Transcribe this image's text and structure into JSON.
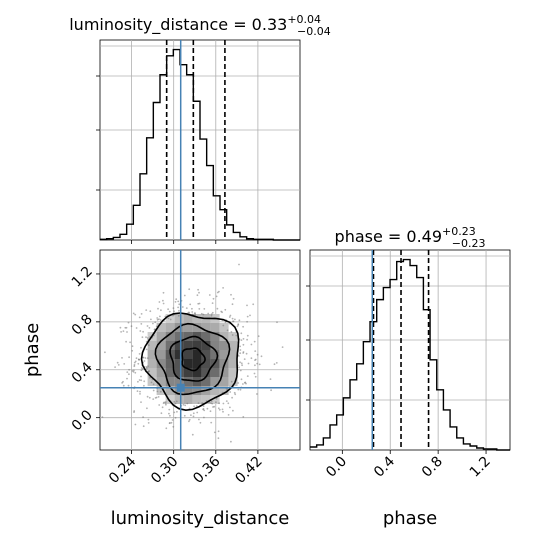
{
  "chart_data": [
    {
      "type": "histogram",
      "panel": "luminosity_distance-marginal",
      "title": {
        "main": "luminosity_distance = 0.33",
        "sup": "+0.04",
        "sub": "−0.04"
      },
      "xlim": [
        0.195,
        0.48
      ],
      "bins": {
        "start": 0.195,
        "width": 0.0095,
        "counts": [
          1,
          2,
          4,
          9,
          25,
          55,
          105,
          162,
          218,
          262,
          292,
          302,
          278,
          262,
          220,
          160,
          118,
          70,
          48,
          24,
          12,
          5,
          2,
          1,
          1,
          1,
          0,
          0,
          0,
          0
        ]
      },
      "quantile_lines": [
        0.29,
        0.328,
        0.373
      ],
      "truth": 0.31,
      "grid": true
    },
    {
      "type": "histogram",
      "panel": "phase-marginal",
      "title": {
        "main": "phase = 0.49",
        "sup": "+0.23",
        "sub": "−0.23"
      },
      "xlim": [
        -0.27,
        1.4
      ],
      "xticks": [
        "0.0",
        "0.4",
        "0.8",
        "1.2"
      ],
      "xtick_values": [
        0.0,
        0.4,
        0.8,
        1.2
      ],
      "xlabel": "phase",
      "bins": {
        "start": -0.27,
        "width": 0.0557,
        "counts": [
          3,
          5,
          12,
          25,
          35,
          52,
          70,
          86,
          108,
          128,
          150,
          162,
          170,
          188,
          190,
          184,
          172,
          140,
          90,
          60,
          40,
          23,
          12,
          6,
          4,
          2,
          1,
          1,
          0,
          0
        ]
      },
      "quantile_lines": [
        0.26,
        0.49,
        0.72
      ],
      "truth": 0.25,
      "grid": true
    },
    {
      "type": "2d-density",
      "panel": "joint",
      "xlim": [
        0.195,
        0.48
      ],
      "ylim": [
        -0.27,
        1.4
      ],
      "xticks": [
        "0.24",
        "0.30",
        "0.36",
        "0.42"
      ],
      "xtick_values": [
        0.24,
        0.3,
        0.36,
        0.42
      ],
      "yticks": [
        "0.0",
        "0.4",
        "0.8",
        "1.2"
      ],
      "ytick_values": [
        0.0,
        0.4,
        0.8,
        1.2
      ],
      "xlabel": "luminosity_distance",
      "ylabel": "phase",
      "center": [
        0.327,
        0.49
      ],
      "spread": [
        0.04,
        0.23
      ],
      "contour_levels": [
        0.4,
        0.8,
        1.25,
        1.7
      ],
      "truth": [
        0.31,
        0.25
      ],
      "grid": true
    }
  ],
  "colors": {
    "truth": "#4682b4",
    "line": "#000000",
    "grid": "#b0b0b0",
    "points": "#000000"
  }
}
